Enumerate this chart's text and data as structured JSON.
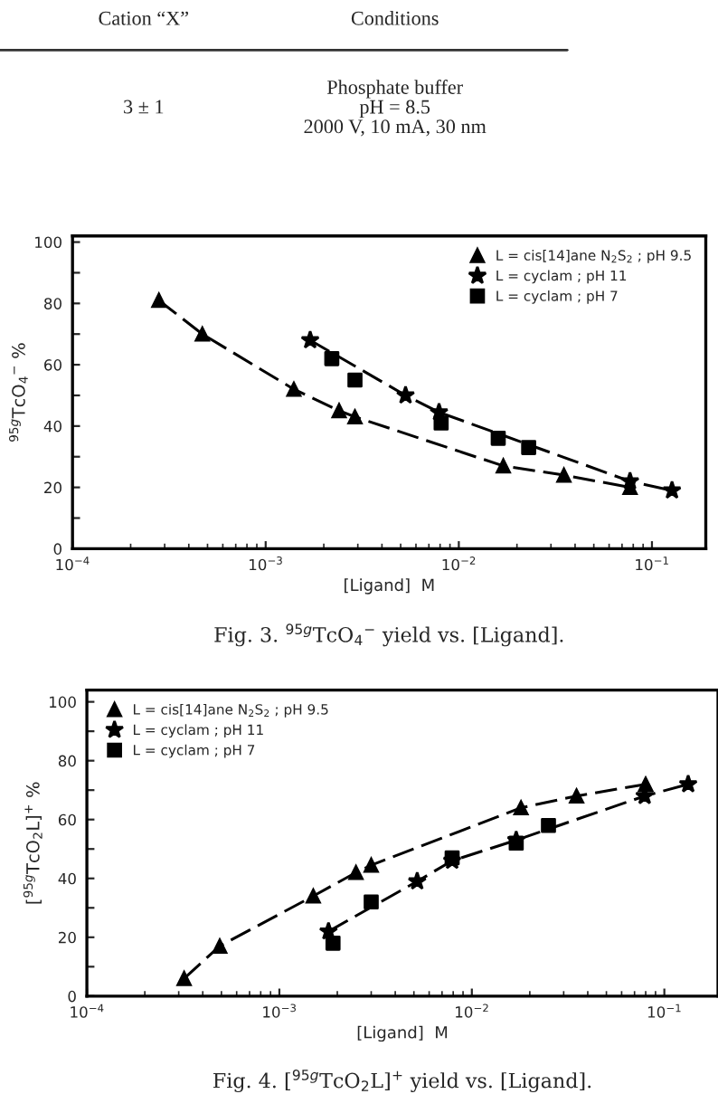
{
  "chart_data": [
    {
      "type": "other",
      "categories": [
        "Cation “X”",
        "Conditions"
      ],
      "cells": [
        [
          "3 ± 1",
          "Phosphate buffer\npH = 8.5\n2000 V, 10 mA, 30 nm"
        ]
      ]
    },
    {
      "type": "line",
      "ylabel": "$^{95g}$TcO$_{4}$$^{−}$ %",
      "xlabel": "[Ligand]  M",
      "annotations": [
        "Fig. 3. $^{95g}$TcO$_{4}$$^{−}$ yield vs. [Ligand]."
      ],
      "log": "x",
      "xlim": [
        0.0001,
        0.19
      ],
      "ylim": [
        0,
        102
      ],
      "xticks": [
        {
          "value": 0.0001,
          "label": "10$^{−4}$"
        },
        {
          "value": 0.001,
          "label": "10$^{−3}$"
        },
        {
          "value": 0.01,
          "label": "10$^{−2}$"
        },
        {
          "value": 0.1,
          "label": "10$^{−1}$"
        }
      ],
      "yticks": [
        0,
        {
          "value": 10,
          "label": null
        },
        20,
        {
          "value": 30,
          "label": null
        },
        40,
        {
          "value": 50,
          "label": null
        },
        60,
        {
          "value": 70,
          "label": null
        },
        80,
        {
          "value": 90,
          "label": null
        },
        100
      ],
      "legend": "top right",
      "grid": false,
      "series": [
        {
          "name": "L = cis[14]ane N$_{2}$S$_{2}$ ; pH 9.5",
          "color": "#000000",
          "marker": "triangle",
          "line_style": "dashed",
          "x": [
            0.00028,
            0.00047,
            0.0014,
            0.0024,
            0.0029,
            0.017,
            0.035,
            0.077
          ],
          "values": [
            81,
            70,
            52,
            45,
            43,
            27,
            24,
            20
          ]
        },
        {
          "name": "L = cyclam ; pH 11",
          "color": "#000000",
          "marker": "star",
          "line_style": "dashed",
          "x": [
            0.0017,
            0.0053,
            0.0079,
            0.077,
            0.127
          ],
          "values": [
            68,
            50,
            44.5,
            22,
            19
          ]
        },
        {
          "name": "L = cyclam ; pH 7",
          "type": "scatter",
          "color": "#000000",
          "marker": "square",
          "x": [
            0.0022,
            0.0029,
            0.0081,
            0.016,
            0.023
          ],
          "values": [
            62,
            55,
            41,
            36,
            33
          ]
        }
      ]
    },
    {
      "type": "line",
      "ylabel": "[$^{95g}$TcO$_{2}$L]$^{+}$ %",
      "xlabel": "[Ligand]  M",
      "annotations": [
        "Fig. 4. [$^{95g}$TcO$_{2}$L]$^{+}$ yield vs. [Ligand]."
      ],
      "log": "x",
      "xlim": [
        0.0001,
        0.19
      ],
      "ylim": [
        0,
        104
      ],
      "xticks": [
        {
          "value": 0.0001,
          "label": "10$^{−4}$"
        },
        {
          "value": 0.001,
          "label": "10$^{−3}$"
        },
        {
          "value": 0.01,
          "label": "10$^{−2}$"
        },
        {
          "value": 0.1,
          "label": "10$^{−1}$"
        }
      ],
      "yticks": [
        0,
        {
          "value": 10,
          "label": null
        },
        20,
        {
          "value": 30,
          "label": null
        },
        40,
        {
          "value": 50,
          "label": null
        },
        60,
        {
          "value": 70,
          "label": null
        },
        80,
        {
          "value": 90,
          "label": null
        },
        100
      ],
      "legend": "top left",
      "grid": false,
      "series": [
        {
          "name": "L = cis[14]ane N$_{2}$S$_{2}$ ; pH 9.5",
          "color": "#000000",
          "marker": "triangle",
          "line_style": "dashed",
          "x": [
            0.00032,
            0.00049,
            0.0015,
            0.0025,
            0.003,
            0.018,
            0.035,
            0.08
          ],
          "values": [
            6,
            17,
            34,
            42,
            44.5,
            64,
            68,
            72
          ]
        },
        {
          "name": "L = cyclam ; pH 11",
          "color": "#000000",
          "marker": "star",
          "line_style": "dashed",
          "x": [
            0.0018,
            0.0052,
            0.0079,
            0.017,
            0.079,
            0.133
          ],
          "values": [
            22,
            39,
            46,
            53,
            68,
            72
          ]
        },
        {
          "name": "L = cyclam ; pH 7",
          "type": "scatter",
          "color": "#000000",
          "marker": "square",
          "x": [
            0.0019,
            0.003,
            0.0079,
            0.017,
            0.025
          ],
          "values": [
            18,
            32,
            47,
            52,
            58
          ]
        }
      ]
    }
  ]
}
